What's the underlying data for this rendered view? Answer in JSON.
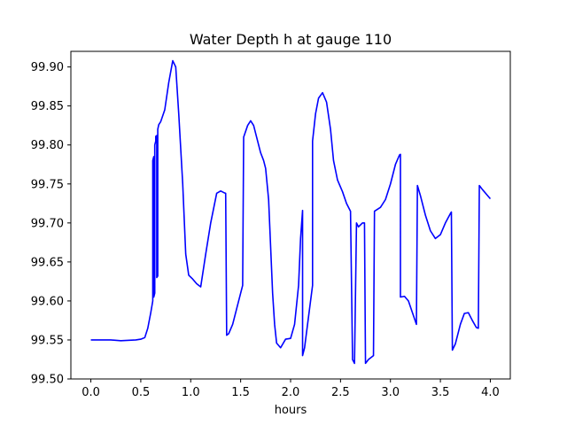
{
  "chart_data": {
    "type": "line",
    "title": "Water Depth h at gauge 110",
    "xlabel": "hours",
    "ylabel": "",
    "xlim": [
      -0.2,
      4.2
    ],
    "ylim": [
      99.5,
      99.92
    ],
    "xticks": [
      0.0,
      0.5,
      1.0,
      1.5,
      2.0,
      2.5,
      3.0,
      3.5,
      4.0
    ],
    "xtick_labels": [
      "0.0",
      "0.5",
      "1.0",
      "1.5",
      "2.0",
      "2.5",
      "3.0",
      "3.5",
      "4.0"
    ],
    "yticks": [
      99.5,
      99.55,
      99.6,
      99.65,
      99.7,
      99.75,
      99.8,
      99.85,
      99.9
    ],
    "ytick_labels": [
      "99.50",
      "99.55",
      "99.60",
      "99.65",
      "99.70",
      "99.75",
      "99.80",
      "99.85",
      "99.90"
    ],
    "grid": false,
    "series": [
      {
        "color": "#0000ff",
        "x": [
          0.0,
          0.2,
          0.3,
          0.45,
          0.5,
          0.54,
          0.57,
          0.6,
          0.62,
          0.62,
          0.63,
          0.63,
          0.64,
          0.64,
          0.65,
          0.65,
          0.66,
          0.66,
          0.67,
          0.67,
          0.68,
          0.7,
          0.74,
          0.78,
          0.82,
          0.85,
          0.88,
          0.92,
          0.95,
          0.98,
          1.02,
          1.06,
          1.1,
          1.15,
          1.2,
          1.26,
          1.3,
          1.33,
          1.35,
          1.36,
          1.38,
          1.42,
          1.46,
          1.52,
          1.53,
          1.57,
          1.6,
          1.63,
          1.66,
          1.7,
          1.73,
          1.75,
          1.78,
          1.8,
          1.82,
          1.84,
          1.86,
          1.9,
          1.95,
          2.0,
          2.04,
          2.08,
          2.1,
          2.12,
          2.12,
          2.14,
          2.18,
          2.22,
          2.22,
          2.25,
          2.28,
          2.32,
          2.36,
          2.4,
          2.43,
          2.47,
          2.52,
          2.56,
          2.6,
          2.62,
          2.62,
          2.64,
          2.66,
          2.68,
          2.72,
          2.74,
          2.75,
          2.78,
          2.83,
          2.84,
          2.9,
          2.95,
          3.0,
          3.05,
          3.09,
          3.1,
          3.1,
          3.14,
          3.18,
          3.22,
          3.26,
          3.27,
          3.3,
          3.35,
          3.4,
          3.45,
          3.5,
          3.55,
          3.6,
          3.61,
          3.62,
          3.65,
          3.7,
          3.74,
          3.78,
          3.82,
          3.86,
          3.88,
          3.89,
          3.92,
          3.96,
          4.0
        ],
        "y": [
          99.55,
          99.55,
          99.549,
          99.55,
          99.551,
          99.553,
          99.565,
          99.585,
          99.6,
          99.78,
          99.785,
          99.605,
          99.61,
          99.8,
          99.805,
          99.811,
          99.812,
          99.63,
          99.632,
          99.82,
          99.826,
          99.83,
          99.845,
          99.88,
          99.908,
          99.9,
          99.84,
          99.75,
          99.66,
          99.633,
          99.628,
          99.622,
          99.618,
          99.66,
          99.7,
          99.738,
          99.741,
          99.739,
          99.738,
          99.556,
          99.558,
          99.57,
          99.59,
          99.62,
          99.81,
          99.825,
          99.831,
          99.825,
          99.81,
          99.79,
          99.78,
          99.77,
          99.73,
          99.67,
          99.61,
          99.57,
          99.546,
          99.54,
          99.551,
          99.552,
          99.57,
          99.62,
          99.68,
          99.716,
          99.53,
          99.54,
          99.58,
          99.62,
          99.805,
          99.84,
          99.86,
          99.867,
          99.855,
          99.82,
          99.78,
          99.755,
          99.74,
          99.725,
          99.715,
          99.53,
          99.525,
          99.52,
          99.7,
          99.695,
          99.7,
          99.7,
          99.52,
          99.525,
          99.53,
          99.715,
          99.72,
          99.73,
          99.75,
          99.775,
          99.787,
          99.788,
          99.605,
          99.606,
          99.6,
          99.585,
          99.57,
          99.748,
          99.735,
          99.71,
          99.69,
          99.68,
          99.685,
          99.7,
          99.712,
          99.714,
          99.537,
          99.545,
          99.57,
          99.584,
          99.585,
          99.575,
          99.566,
          99.565,
          99.748,
          99.743,
          99.737,
          99.731
        ]
      }
    ]
  }
}
